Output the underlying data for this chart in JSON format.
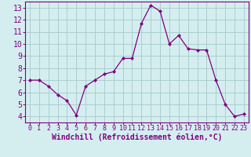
{
  "x": [
    0,
    1,
    2,
    3,
    4,
    5,
    6,
    7,
    8,
    9,
    10,
    11,
    12,
    13,
    14,
    15,
    16,
    17,
    18,
    19,
    20,
    21,
    22,
    23
  ],
  "y": [
    7.0,
    7.0,
    6.5,
    5.8,
    5.3,
    4.1,
    6.5,
    7.0,
    7.5,
    7.7,
    8.8,
    8.8,
    11.7,
    13.2,
    12.7,
    10.0,
    10.7,
    9.6,
    9.5,
    9.5,
    7.0,
    5.0,
    4.0,
    4.2
  ],
  "line_color": "#800080",
  "marker_color": "#800080",
  "bg_color": "#d4eef0",
  "grid_color": "#aacece",
  "axis_label_color": "#800080",
  "xlabel": "Windchill (Refroidissement éolien,°C)",
  "xlim": [
    -0.5,
    23.5
  ],
  "ylim": [
    3.5,
    13.5
  ],
  "yticks": [
    4,
    5,
    6,
    7,
    8,
    9,
    10,
    11,
    12,
    13
  ],
  "xticks": [
    0,
    1,
    2,
    3,
    4,
    5,
    6,
    7,
    8,
    9,
    10,
    11,
    12,
    13,
    14,
    15,
    16,
    17,
    18,
    19,
    20,
    21,
    22,
    23
  ],
  "spine_color": "#800080",
  "tick_color": "#800080",
  "xlabel_fontsize": 7.0,
  "ytick_fontsize": 7.0,
  "xtick_fontsize": 6.0
}
